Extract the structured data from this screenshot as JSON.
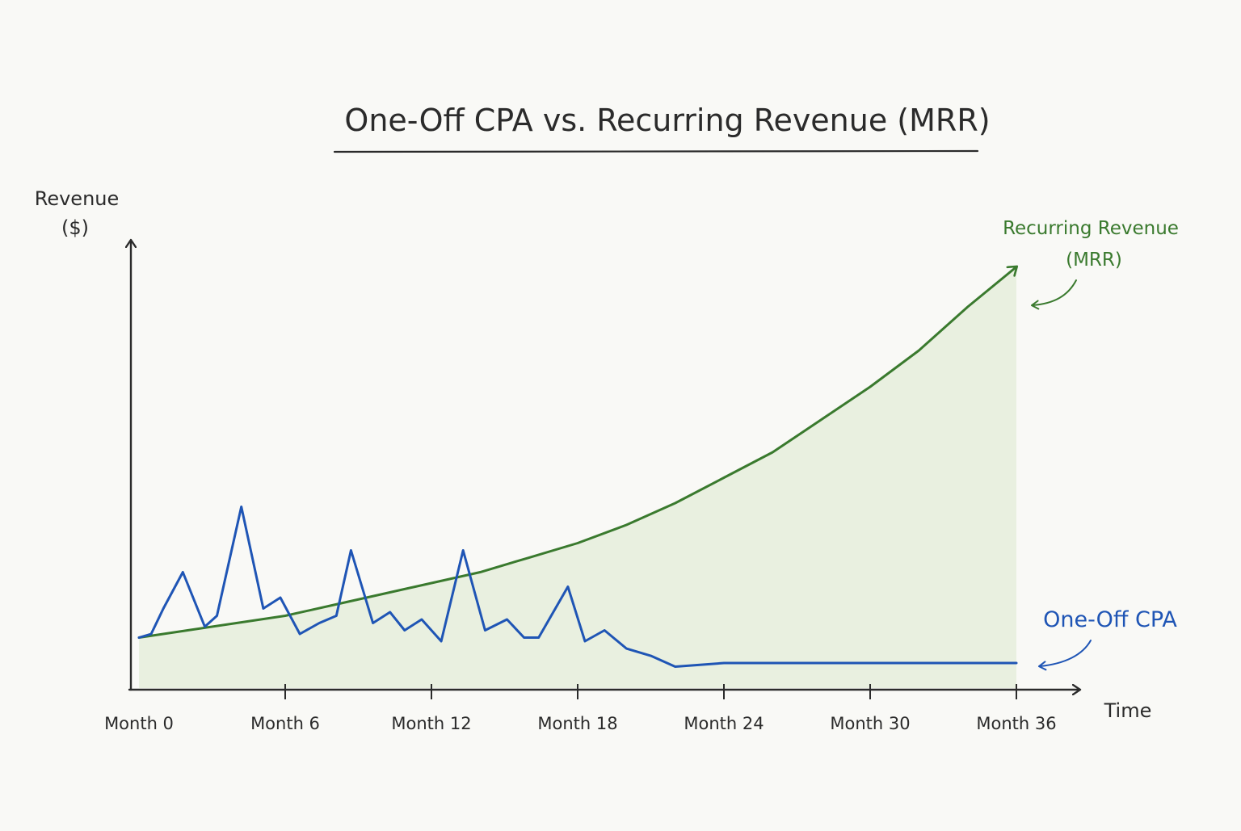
{
  "chart_data": {
    "type": "line",
    "title": "One-Off CPA vs. Recurring Revenue (MRR)",
    "ylabel_line1": "Revenue",
    "ylabel_line2": "($)",
    "xlabel": "Time",
    "x_range": [
      0,
      36
    ],
    "y_range": [
      0,
      100
    ],
    "grid": false,
    "legend": "inline-labels-right",
    "ticks": [
      {
        "value": 0,
        "label": "Month 0"
      },
      {
        "value": 6,
        "label": "Month 6"
      },
      {
        "value": 12,
        "label": "Month 12"
      },
      {
        "value": 18,
        "label": "Month 18"
      },
      {
        "value": 24,
        "label": "Month 24"
      },
      {
        "value": 30,
        "label": "Month 30"
      },
      {
        "value": 36,
        "label": "Month 36"
      }
    ],
    "series": [
      {
        "name": "Recurring Revenue (MRR)",
        "label_line1": "Recurring Revenue",
        "label_line2": "(MRR)",
        "color": "#3a7a2e",
        "fill": "#e6efdc",
        "x": [
          0,
          2,
          4,
          6,
          8,
          10,
          12,
          14,
          16,
          18,
          20,
          22,
          24,
          26,
          28,
          30,
          32,
          34,
          36
        ],
        "y": [
          9,
          11,
          13,
          15,
          18,
          21,
          24,
          27,
          31,
          35,
          40,
          46,
          53,
          60,
          69,
          78,
          88,
          100,
          111
        ]
      },
      {
        "name": "One-Off CPA",
        "label": "One-Off CPA",
        "color": "#1f55b5",
        "x": [
          0,
          0.5,
          1,
          1.8,
          2.7,
          3.2,
          4.2,
          5.1,
          5.8,
          6.6,
          7.4,
          8.1,
          8.7,
          9.6,
          10.3,
          10.9,
          11.6,
          12.4,
          13.3,
          14.2,
          15.1,
          15.8,
          16.4,
          17.6,
          18.3,
          19.1,
          20,
          21,
          22,
          24,
          26,
          28,
          30,
          32,
          34,
          36
        ],
        "y": [
          9,
          10,
          17,
          27,
          12,
          15,
          45,
          17,
          20,
          10,
          13,
          15,
          33,
          13,
          16,
          11,
          14,
          8,
          33,
          11,
          14,
          9,
          9,
          23,
          8,
          11,
          6,
          4,
          1,
          2,
          2,
          2,
          2,
          2,
          2,
          2
        ]
      }
    ]
  }
}
